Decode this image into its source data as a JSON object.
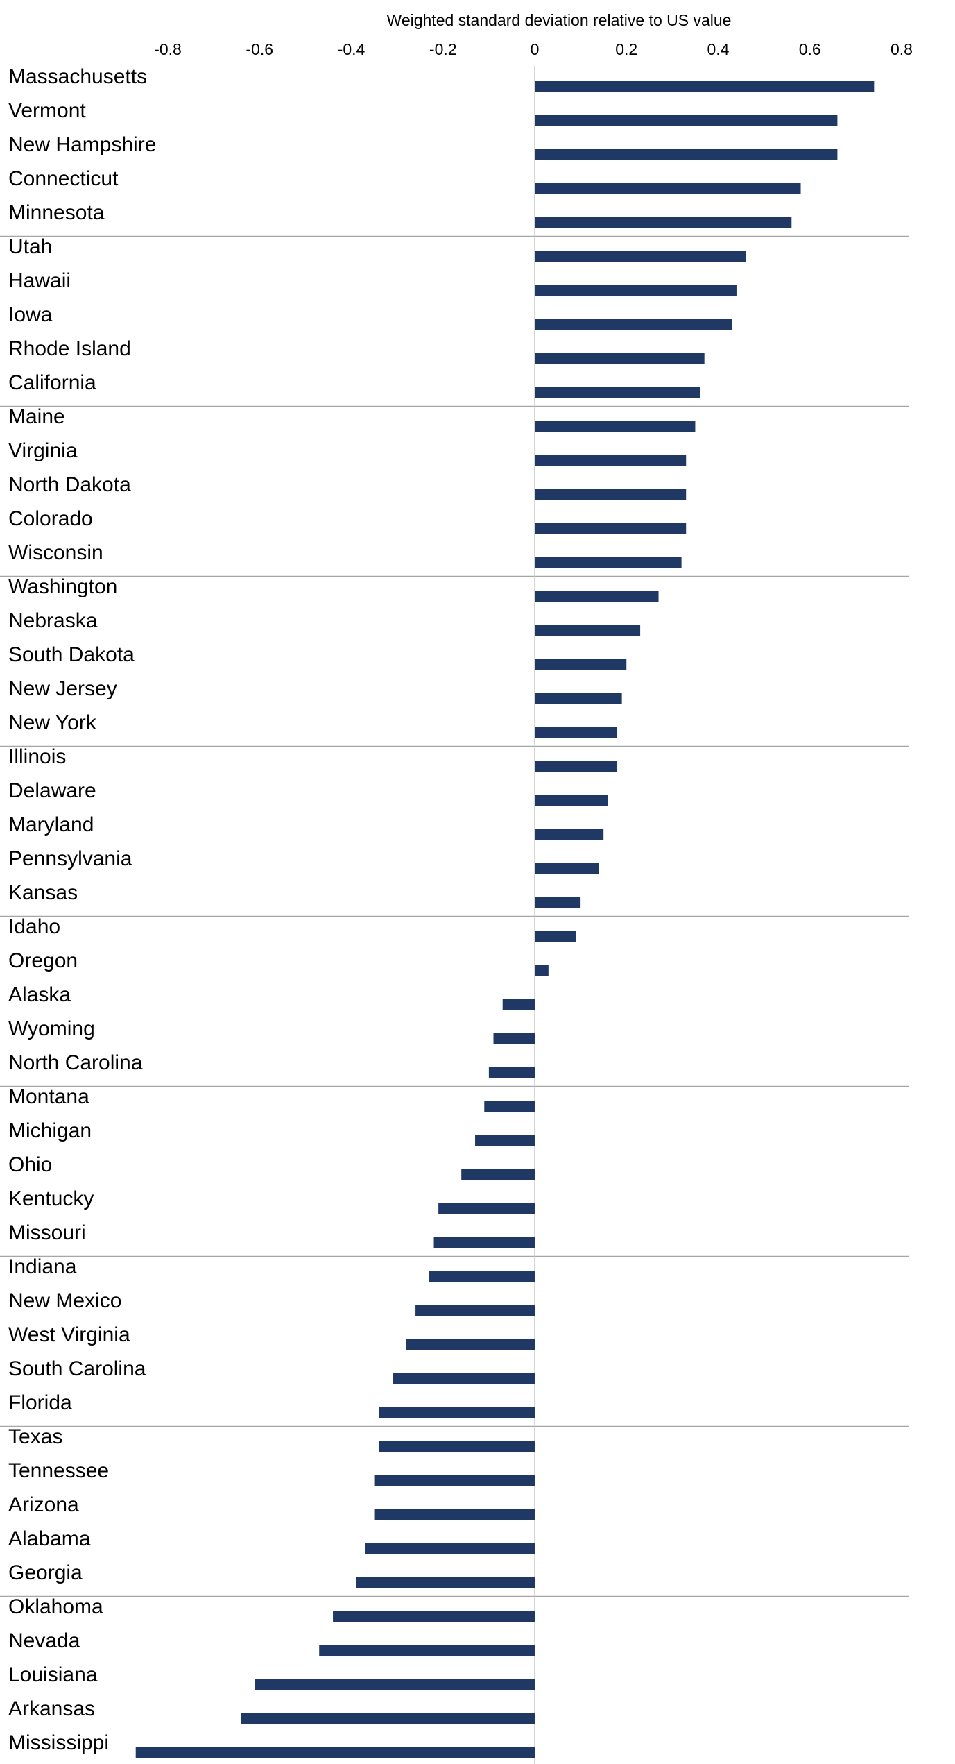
{
  "chart_data": {
    "type": "bar",
    "orientation": "horizontal",
    "title": "Weighted standard deviation relative to US value",
    "xlabel": "",
    "ylabel": "",
    "xlim": [
      -0.8,
      0.8
    ],
    "x_ticks": [
      "-0.8",
      "-0.6",
      "-0.4",
      "-0.2",
      "0",
      "0.2",
      "0.4",
      "0.6",
      "0.8"
    ],
    "grid": false,
    "legend": "none",
    "bar_color": "#1f3864",
    "axis_color": "#c8c8c8",
    "separator_color": "#a6a6a6",
    "group_size": 5,
    "categories": [
      "Massachusetts",
      "Vermont",
      "New Hampshire",
      "Connecticut",
      "Minnesota",
      "Utah",
      "Hawaii",
      "Iowa",
      "Rhode Island",
      "California",
      "Maine",
      "Virginia",
      "North Dakota",
      "Colorado",
      "Wisconsin",
      "Washington",
      "Nebraska",
      "South Dakota",
      "New Jersey",
      "New York",
      "Illinois",
      "Delaware",
      "Maryland",
      "Pennsylvania",
      "Kansas",
      "Idaho",
      "Oregon",
      "Alaska",
      "Wyoming",
      "North Carolina",
      "Montana",
      "Michigan",
      "Ohio",
      "Kentucky",
      "Missouri",
      "Indiana",
      "New Mexico",
      "West Virginia",
      "South Carolina",
      "Florida",
      "Texas",
      "Tennessee",
      "Arizona",
      "Alabama",
      "Georgia",
      "Oklahoma",
      "Nevada",
      "Louisiana",
      "Arkansas",
      "Mississippi"
    ],
    "values": [
      0.74,
      0.66,
      0.66,
      0.58,
      0.56,
      0.46,
      0.44,
      0.43,
      0.37,
      0.36,
      0.35,
      0.33,
      0.33,
      0.33,
      0.32,
      0.27,
      0.23,
      0.2,
      0.19,
      0.18,
      0.18,
      0.16,
      0.15,
      0.14,
      0.1,
      0.09,
      0.03,
      -0.07,
      -0.09,
      -0.1,
      -0.11,
      -0.13,
      -0.16,
      -0.21,
      -0.22,
      -0.23,
      -0.26,
      -0.28,
      -0.31,
      -0.34,
      -0.34,
      -0.35,
      -0.35,
      -0.37,
      -0.39,
      -0.44,
      -0.47,
      -0.61,
      -0.64,
      -0.87
    ]
  }
}
